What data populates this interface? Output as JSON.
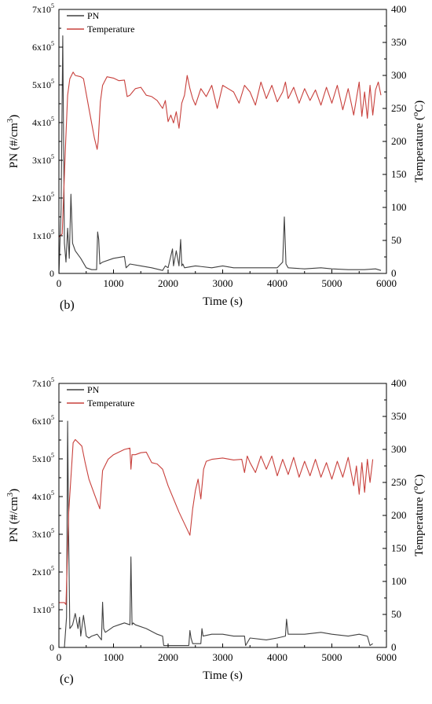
{
  "chart_data": [
    {
      "type": "line",
      "panel_label": "(b)",
      "xlabel": "Time (s)",
      "ylabel_left_base": "PN (#/cm",
      "ylabel_left_sup": "3",
      "ylabel_left_close": ")",
      "ylabel_right_base": "Temperature (",
      "ylabel_right_sup": "o",
      "ylabel_right_close": "C)",
      "xlim": [
        0,
        6000
      ],
      "ylim_left": [
        0,
        700000
      ],
      "ylim_right": [
        0,
        400
      ],
      "x_ticks": [
        "0",
        "1000",
        "2000",
        "3000",
        "4000",
        "5000",
        "6000"
      ],
      "y_left_ticks": [
        {
          "mant": "0",
          "exp": ""
        },
        {
          "mant": "1x10",
          "exp": "5"
        },
        {
          "mant": "2x10",
          "exp": "5"
        },
        {
          "mant": "3x10",
          "exp": "5"
        },
        {
          "mant": "4x10",
          "exp": "5"
        },
        {
          "mant": "5x10",
          "exp": "5"
        },
        {
          "mant": "6x10",
          "exp": "5"
        },
        {
          "mant": "7x10",
          "exp": "5"
        }
      ],
      "y_right_ticks": [
        "0",
        "50",
        "100",
        "150",
        "200",
        "250",
        "300",
        "350",
        "400"
      ],
      "legend_position": "top-left",
      "series": [
        {
          "name": "PN",
          "axis": "left",
          "color": "#404040",
          "x": [
            0,
            40,
            70,
            100,
            130,
            160,
            190,
            220,
            250,
            300,
            400,
            500,
            600,
            690,
            710,
            730,
            750,
            800,
            1000,
            1200,
            1230,
            1300,
            1500,
            1700,
            1900,
            1950,
            2000,
            2080,
            2100,
            2150,
            2200,
            2230,
            2250,
            2270,
            2300,
            2500,
            2800,
            3000,
            3200,
            3500,
            3800,
            4000,
            4100,
            4130,
            4160,
            4200,
            4500,
            4800,
            5000,
            5300,
            5600,
            5800,
            5900
          ],
          "y": [
            0,
            170000,
            630000,
            80000,
            30000,
            120000,
            40000,
            210000,
            80000,
            60000,
            40000,
            15000,
            10000,
            10000,
            110000,
            90000,
            25000,
            30000,
            40000,
            45000,
            15000,
            25000,
            20000,
            15000,
            8000,
            20000,
            15000,
            65000,
            20000,
            60000,
            20000,
            90000,
            20000,
            25000,
            15000,
            20000,
            15000,
            20000,
            15000,
            15000,
            15000,
            15000,
            30000,
            150000,
            25000,
            15000,
            12000,
            15000,
            12000,
            10000,
            10000,
            12000,
            8000
          ]
        },
        {
          "name": "Temperature",
          "axis": "right",
          "color": "#c8403c",
          "x": [
            0,
            60,
            120,
            160,
            200,
            260,
            300,
            400,
            450,
            550,
            650,
            700,
            720,
            760,
            800,
            880,
            1000,
            1100,
            1200,
            1250,
            1300,
            1350,
            1400,
            1500,
            1600,
            1700,
            1800,
            1900,
            1950,
            2000,
            2050,
            2100,
            2150,
            2200,
            2250,
            2300,
            2350,
            2400,
            2450,
            2500,
            2600,
            2700,
            2800,
            2900,
            3000,
            3100,
            3200,
            3300,
            3400,
            3500,
            3600,
            3700,
            3800,
            3900,
            4000,
            4100,
            4150,
            4200,
            4300,
            4400,
            4500,
            4600,
            4700,
            4800,
            4900,
            5000,
            5100,
            5200,
            5300,
            5400,
            5500,
            5550,
            5600,
            5650,
            5700,
            5750,
            5800,
            5850,
            5900
          ],
          "y": [
            55,
            60,
            190,
            270,
            295,
            305,
            300,
            298,
            295,
            250,
            205,
            188,
            200,
            260,
            285,
            298,
            296,
            292,
            293,
            268,
            270,
            275,
            280,
            282,
            270,
            268,
            262,
            250,
            262,
            230,
            240,
            228,
            245,
            220,
            258,
            270,
            300,
            280,
            265,
            255,
            280,
            268,
            285,
            250,
            285,
            280,
            275,
            258,
            285,
            275,
            255,
            290,
            265,
            285,
            260,
            275,
            290,
            265,
            282,
            258,
            280,
            262,
            278,
            255,
            282,
            258,
            285,
            248,
            280,
            240,
            290,
            238,
            275,
            235,
            285,
            240,
            278,
            290,
            270
          ]
        }
      ]
    },
    {
      "type": "line",
      "panel_label": "(c)",
      "xlabel": "Time (s)",
      "ylabel_left_base": "PN (#/cm",
      "ylabel_left_sup": "3",
      "ylabel_left_close": ")",
      "ylabel_right_base": "Temperature (",
      "ylabel_right_sup": "o",
      "ylabel_right_close": "C)",
      "xlim": [
        0,
        6000
      ],
      "ylim_left": [
        0,
        700000
      ],
      "ylim_right": [
        0,
        400
      ],
      "x_ticks": [
        "0",
        "1000",
        "2000",
        "3000",
        "4000",
        "5000",
        "6000"
      ],
      "y_left_ticks": [
        {
          "mant": "0",
          "exp": ""
        },
        {
          "mant": "1x10",
          "exp": "5"
        },
        {
          "mant": "2x10",
          "exp": "5"
        },
        {
          "mant": "3x10",
          "exp": "5"
        },
        {
          "mant": "4x10",
          "exp": "5"
        },
        {
          "mant": "5x10",
          "exp": "5"
        },
        {
          "mant": "6x10",
          "exp": "5"
        },
        {
          "mant": "7x10",
          "exp": "5"
        }
      ],
      "y_right_ticks": [
        "0",
        "50",
        "100",
        "150",
        "200",
        "250",
        "300",
        "350",
        "400"
      ],
      "legend_position": "top-left",
      "series": [
        {
          "name": "PN",
          "axis": "left",
          "color": "#404040",
          "x": [
            0,
            100,
            140,
            160,
            180,
            200,
            250,
            300,
            350,
            380,
            400,
            450,
            500,
            550,
            600,
            700,
            780,
            800,
            820,
            850,
            900,
            1000,
            1100,
            1200,
            1300,
            1320,
            1340,
            1360,
            1400,
            1600,
            1800,
            1900,
            1920,
            2000,
            2200,
            2380,
            2400,
            2420,
            2450,
            2600,
            2620,
            2640,
            2800,
            3000,
            3200,
            3400,
            3420,
            3500,
            3800,
            4000,
            4150,
            4170,
            4200,
            4500,
            4800,
            5000,
            5300,
            5500,
            5650,
            5700,
            5750
          ],
          "y": [
            0,
            0,
            80000,
            600000,
            280000,
            50000,
            60000,
            90000,
            50000,
            80000,
            30000,
            85000,
            30000,
            25000,
            30000,
            35000,
            20000,
            120000,
            50000,
            40000,
            45000,
            55000,
            60000,
            65000,
            60000,
            240000,
            60000,
            65000,
            60000,
            50000,
            35000,
            30000,
            5000,
            5000,
            5000,
            5000,
            45000,
            25000,
            10000,
            10000,
            50000,
            30000,
            35000,
            35000,
            30000,
            30000,
            5000,
            25000,
            20000,
            25000,
            30000,
            75000,
            35000,
            35000,
            40000,
            35000,
            30000,
            35000,
            30000,
            5000,
            10000
          ]
        },
        {
          "name": "Temperature",
          "axis": "right",
          "color": "#c8403c",
          "x": [
            0,
            100,
            130,
            180,
            260,
            300,
            420,
            480,
            550,
            650,
            750,
            800,
            900,
            1000,
            1200,
            1300,
            1320,
            1340,
            1400,
            1500,
            1600,
            1700,
            1800,
            1900,
            2000,
            2200,
            2400,
            2450,
            2500,
            2550,
            2600,
            2650,
            2700,
            2800,
            3000,
            3200,
            3350,
            3400,
            3450,
            3500,
            3600,
            3700,
            3800,
            3900,
            4000,
            4100,
            4200,
            4300,
            4400,
            4500,
            4600,
            4700,
            4800,
            4900,
            5000,
            5100,
            5200,
            5300,
            5400,
            5450,
            5500,
            5550,
            5600,
            5650,
            5700,
            5750
          ],
          "y": [
            68,
            68,
            65,
            205,
            310,
            315,
            305,
            280,
            255,
            232,
            210,
            268,
            285,
            292,
            300,
            302,
            270,
            292,
            292,
            295,
            296,
            280,
            278,
            270,
            245,
            205,
            170,
            210,
            238,
            255,
            225,
            270,
            282,
            285,
            287,
            284,
            285,
            265,
            290,
            280,
            265,
            290,
            270,
            290,
            260,
            285,
            262,
            288,
            258,
            282,
            260,
            285,
            258,
            280,
            255,
            282,
            258,
            288,
            245,
            275,
            232,
            280,
            235,
            285,
            250,
            285
          ]
        }
      ]
    }
  ]
}
